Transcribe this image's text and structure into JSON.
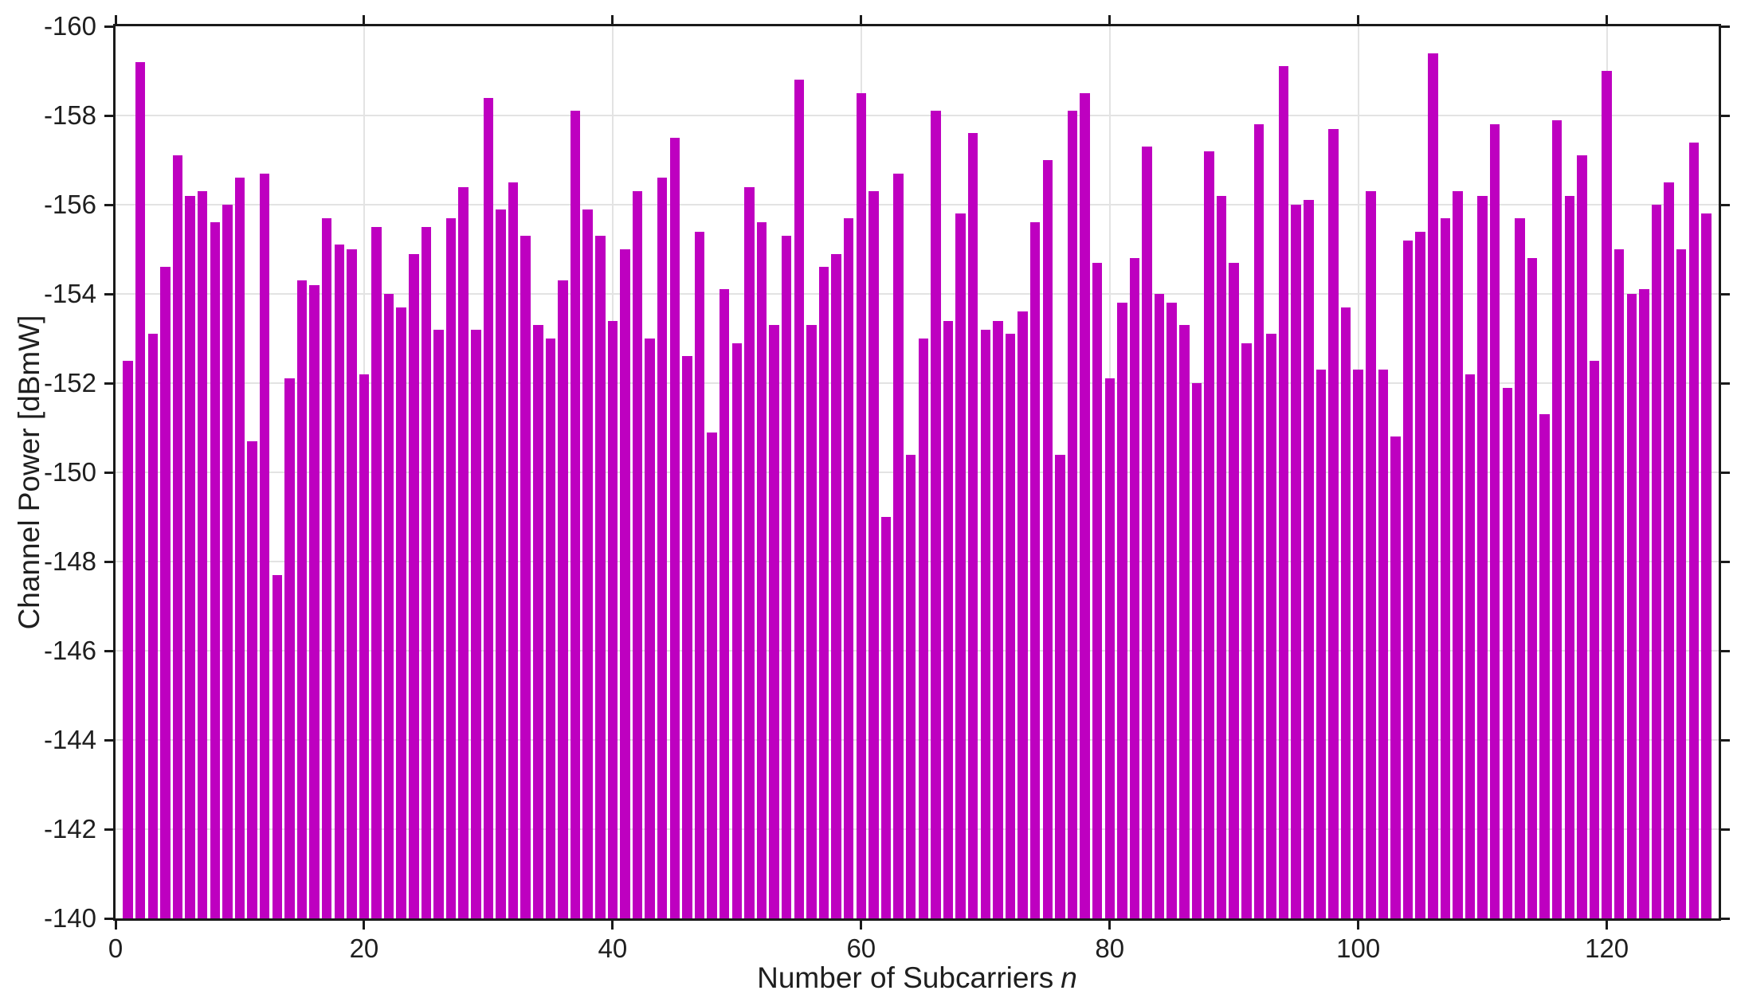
{
  "figure": {
    "xlabel_text": "Number of Subcarriers",
    "xlabel_var": "n",
    "ylabel": "Channel Power [dBmW]"
  },
  "chart_data": {
    "type": "bar",
    "title": "",
    "xlabel": "Number of Subcarriers n",
    "ylabel": "Channel Power [dBmW]",
    "x_start": 1,
    "values": [
      -152.5,
      -159.2,
      -153.1,
      -154.6,
      -157.1,
      -156.2,
      -156.3,
      -155.6,
      -156.0,
      -156.6,
      -150.7,
      -156.7,
      -147.7,
      -152.1,
      -154.3,
      -154.2,
      -155.7,
      -155.1,
      -155.0,
      -152.2,
      -155.5,
      -154.0,
      -153.7,
      -154.9,
      -155.5,
      -153.2,
      -155.7,
      -156.4,
      -153.2,
      -158.4,
      -155.9,
      -156.5,
      -155.3,
      -153.3,
      -153.0,
      -154.3,
      -158.1,
      -155.9,
      -155.3,
      -153.4,
      -155.0,
      -156.3,
      -153.0,
      -156.6,
      -157.5,
      -152.6,
      -155.4,
      -150.9,
      -154.1,
      -152.9,
      -156.4,
      -155.6,
      -153.3,
      -155.3,
      -158.8,
      -153.3,
      -154.6,
      -154.9,
      -155.7,
      -158.5,
      -156.3,
      -149.0,
      -156.7,
      -150.4,
      -153.0,
      -158.1,
      -153.4,
      -155.8,
      -157.6,
      -153.2,
      -153.4,
      -153.1,
      -153.6,
      -155.6,
      -157.0,
      -150.4,
      -158.1,
      -158.5,
      -154.7,
      -152.1,
      -153.8,
      -154.8,
      -157.3,
      -154.0,
      -153.8,
      -153.3,
      -152.0,
      -157.2,
      -156.2,
      -154.7,
      -152.9,
      -157.8,
      -153.1,
      -159.1,
      -156.0,
      -156.1,
      -152.3,
      -157.7,
      -153.7,
      -152.3,
      -156.3,
      -152.3,
      -150.8,
      -155.2,
      -155.4,
      -159.4,
      -155.7,
      -156.3,
      -152.2,
      -156.2,
      -157.8,
      -151.9,
      -155.7,
      -154.8,
      -151.3,
      -157.9,
      -156.2,
      -157.1,
      -152.5,
      -159.0,
      -155.0,
      -154.0,
      -154.1,
      -156.0,
      -156.5,
      -155.0,
      -157.4,
      -155.8
    ],
    "xlim": [
      0,
      129
    ],
    "ylim": [
      -160,
      -140
    ],
    "y_axis_reversed": true,
    "xticks": [
      0,
      20,
      40,
      60,
      80,
      100,
      120
    ],
    "yticks": [
      -160,
      -158,
      -156,
      -154,
      -152,
      -150,
      -148,
      -146,
      -144,
      -142,
      -140
    ],
    "grid": true,
    "legend_position": "none",
    "bar_color": "#be00c0",
    "bar_width_frac": 0.8,
    "grid_color": "#e3e3e3",
    "axis_color": "#1a1a1a",
    "tick_label_color": "#1f1f1f",
    "background_color": "#ffffff"
  }
}
